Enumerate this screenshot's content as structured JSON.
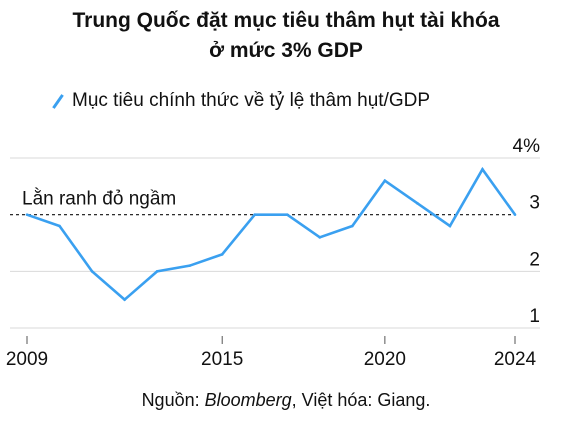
{
  "title_line1": "Trung Quốc đặt mục tiêu thâm hụt tài khóa",
  "title_line2": "ở mức 3% GDP",
  "footer": {
    "prefix": "Nguồn: ",
    "source": "Bloomberg",
    "suffix": ", Việt hóa: Giang."
  },
  "colors": {
    "line": "#3aa0f0",
    "grid": "#d9d9d9",
    "reference": "#111111"
  },
  "chart_data": {
    "type": "line",
    "title": "Trung Quốc đặt mục tiêu thâm hụt tài khóa ở mức 3% GDP",
    "xlabel": "",
    "ylabel": "",
    "x": [
      2009,
      2010,
      2011,
      2012,
      2013,
      2014,
      2015,
      2016,
      2017,
      2018,
      2019,
      2020,
      2021,
      2022,
      2023,
      2024
    ],
    "series": [
      {
        "name": "Mục tiêu chính thức về tỷ lệ thâm hụt/GDP",
        "values": [
          3.0,
          2.8,
          2.0,
          1.5,
          2.0,
          2.1,
          2.3,
          3.0,
          3.0,
          2.6,
          2.8,
          3.6,
          3.2,
          2.8,
          3.8,
          3.0
        ]
      }
    ],
    "xlim": [
      2009,
      2024
    ],
    "ylim": [
      1,
      4
    ],
    "x_ticks": [
      2009,
      2015,
      2020,
      2024
    ],
    "y_ticks": [
      {
        "value": 4,
        "label": "4%"
      },
      {
        "value": 3,
        "label": "3"
      },
      {
        "value": 2,
        "label": "2"
      },
      {
        "value": 1,
        "label": "1"
      }
    ],
    "reference_line": {
      "value": 3,
      "label": "Lằn ranh đỏ ngầm"
    },
    "grid": true,
    "legend_position": "top-left"
  }
}
